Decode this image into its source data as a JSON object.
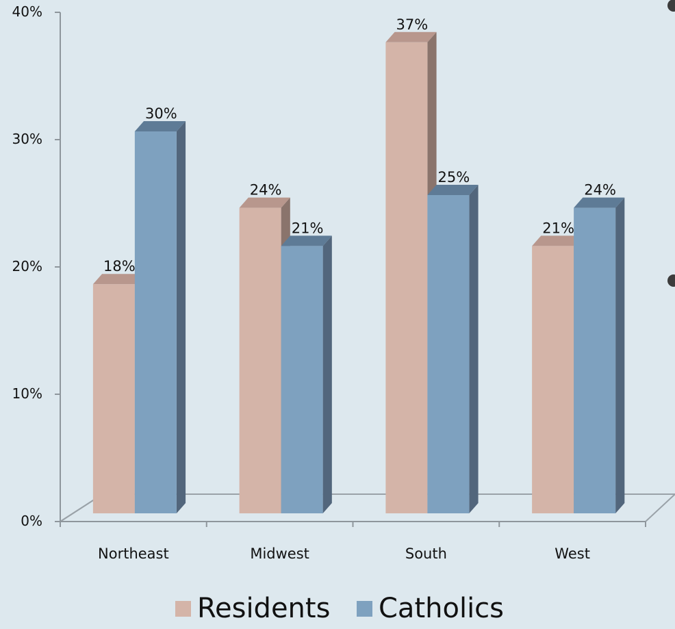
{
  "chart_data": {
    "type": "bar",
    "title": "",
    "xlabel": "",
    "ylabel": "",
    "categories": [
      "Northeast",
      "Midwest",
      "South",
      "West"
    ],
    "series": [
      {
        "name": "Residents",
        "values": [
          18,
          24,
          37,
          21
        ],
        "labels": [
          "18%",
          "24%",
          "37%",
          "21%"
        ],
        "color": "#d4b4a8",
        "side_color": "#8a746c",
        "top_color": "#b8978d"
      },
      {
        "name": "Catholics",
        "values": [
          30,
          21,
          25,
          24
        ],
        "labels": [
          "30%",
          "21%",
          "25%",
          "24%"
        ],
        "color": "#7ea1bf",
        "side_color": "#52667c",
        "top_color": "#5e7b96"
      }
    ],
    "ylim": [
      0,
      40
    ],
    "yticks": [
      0,
      10,
      20,
      30,
      40
    ],
    "ytick_labels": [
      "0%",
      "10%",
      "20%",
      "30%",
      "40%"
    ],
    "grid": false,
    "legend_position": "bottom",
    "style": "3d-clustered"
  }
}
